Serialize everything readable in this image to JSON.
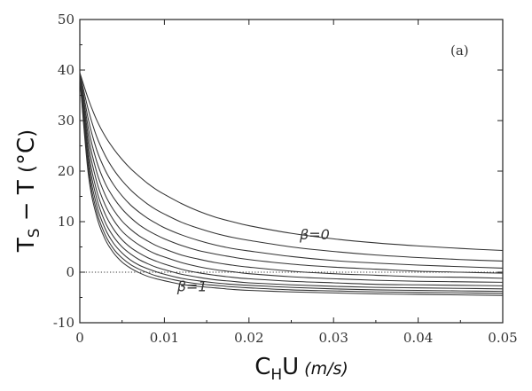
{
  "chart_data": {
    "type": "line",
    "panel_label": "(a)",
    "xlim": [
      0,
      0.05
    ],
    "ylim": [
      -10,
      50
    ],
    "x_ticks": [
      0,
      0.01,
      0.02,
      0.03,
      0.04,
      0.05
    ],
    "x_tick_labels": [
      "0",
      "0.01",
      "0.02",
      "0.03",
      "0.04",
      "0.05"
    ],
    "y_ticks": [
      -10,
      0,
      10,
      20,
      30,
      40,
      50
    ],
    "y_tick_labels": [
      "-10",
      "0",
      "10",
      "20",
      "30",
      "40",
      "50"
    ],
    "xlabel": {
      "main": "C",
      "sub": "H",
      "after": "U",
      "units": "(m/s)"
    },
    "ylabel": {
      "main": "T",
      "sub": "S",
      "mid": " − T ",
      "paren_open": "(",
      "units": "°C",
      "paren_close": ")"
    },
    "reference_line": {
      "y": 0,
      "style": "dotted"
    },
    "series_labels": [
      {
        "text": "β=0",
        "x": 0.026,
        "y": 6.5
      },
      {
        "text": "β=1",
        "x": 0.0115,
        "y": -3.8
      }
    ],
    "x": [
      0,
      0.001,
      0.002,
      0.003,
      0.004,
      0.005,
      0.006,
      0.007,
      0.008,
      0.009,
      0.01,
      0.012,
      0.014,
      0.016,
      0.018,
      0.02,
      0.025,
      0.03,
      0.035,
      0.04,
      0.045,
      0.05
    ],
    "series": [
      {
        "values": [
          39.5,
          34.3,
          30.1,
          26.9,
          24.4,
          22.3,
          20.5,
          19.0,
          17.6,
          16.4,
          15.4,
          13.6,
          12.1,
          10.9,
          10.0,
          9.2,
          7.7,
          6.6,
          5.8,
          5.2,
          4.7,
          4.3
        ]
      },
      {
        "values": [
          39.4,
          32.2,
          26.8,
          23.1,
          20.3,
          18.1,
          16.3,
          14.8,
          13.5,
          12.4,
          11.5,
          9.9,
          8.7,
          7.7,
          6.9,
          6.3,
          5.0,
          4.1,
          3.4,
          2.9,
          2.5,
          2.2
        ]
      },
      {
        "values": [
          39.3,
          30.3,
          24.2,
          20.2,
          17.3,
          15.1,
          13.3,
          11.9,
          10.7,
          9.7,
          8.8,
          7.4,
          6.3,
          5.4,
          4.7,
          4.2,
          3.1,
          2.3,
          1.8,
          1.4,
          1.1,
          0.8
        ]
      },
      {
        "values": [
          39.2,
          28.6,
          21.9,
          17.6,
          14.7,
          12.5,
          10.8,
          9.4,
          8.3,
          7.4,
          6.6,
          5.3,
          4.3,
          3.6,
          3.0,
          2.5,
          1.6,
          1.0,
          0.6,
          0.2,
          0.0,
          -0.2
        ]
      },
      {
        "values": [
          39.1,
          27.0,
          19.8,
          15.3,
          12.3,
          10.1,
          8.5,
          7.2,
          6.2,
          5.3,
          4.6,
          3.4,
          2.6,
          1.9,
          1.4,
          1.0,
          0.2,
          -0.3,
          -0.6,
          -0.9,
          -1.0,
          -1.2
        ]
      },
      {
        "values": [
          39.0,
          25.5,
          17.9,
          13.3,
          10.3,
          8.1,
          6.6,
          5.4,
          4.4,
          3.6,
          3.0,
          1.9,
          1.1,
          0.5,
          0.1,
          -0.3,
          -0.9,
          -1.3,
          -1.6,
          -1.8,
          -1.9,
          -2.0
        ]
      },
      {
        "values": [
          38.9,
          24.1,
          16.1,
          11.5,
          8.5,
          6.4,
          4.9,
          3.8,
          2.9,
          2.2,
          1.6,
          0.6,
          -0.1,
          -0.6,
          -1.0,
          -1.3,
          -1.8,
          -2.1,
          -2.4,
          -2.5,
          -2.6,
          -2.7
        ]
      },
      {
        "values": [
          38.8,
          22.8,
          14.6,
          9.9,
          7.0,
          5.0,
          3.6,
          2.5,
          1.7,
          1.0,
          0.5,
          -0.4,
          -1.0,
          -1.5,
          -1.8,
          -2.1,
          -2.5,
          -2.8,
          -3.0,
          -3.1,
          -3.2,
          -3.3
        ]
      },
      {
        "values": [
          38.7,
          21.6,
          13.2,
          8.6,
          5.7,
          3.8,
          2.4,
          1.4,
          0.7,
          0.1,
          -0.4,
          -1.2,
          -1.7,
          -2.1,
          -2.4,
          -2.6,
          -3.0,
          -3.3,
          -3.5,
          -3.6,
          -3.7,
          -3.8
        ]
      },
      {
        "values": [
          38.6,
          20.5,
          12.0,
          7.4,
          4.6,
          2.8,
          1.5,
          0.6,
          -0.1,
          -0.7,
          -1.1,
          -1.8,
          -2.3,
          -2.6,
          -2.9,
          -3.1,
          -3.5,
          -3.7,
          -3.9,
          -4.0,
          -4.1,
          -4.2
        ]
      },
      {
        "values": [
          38.5,
          19.5,
          11.0,
          6.5,
          3.8,
          2.0,
          0.8,
          -0.1,
          -0.8,
          -1.3,
          -1.7,
          -2.4,
          -2.8,
          -3.1,
          -3.4,
          -3.6,
          -3.9,
          -4.1,
          -4.3,
          -4.4,
          -4.5,
          -4.6
        ]
      }
    ]
  }
}
